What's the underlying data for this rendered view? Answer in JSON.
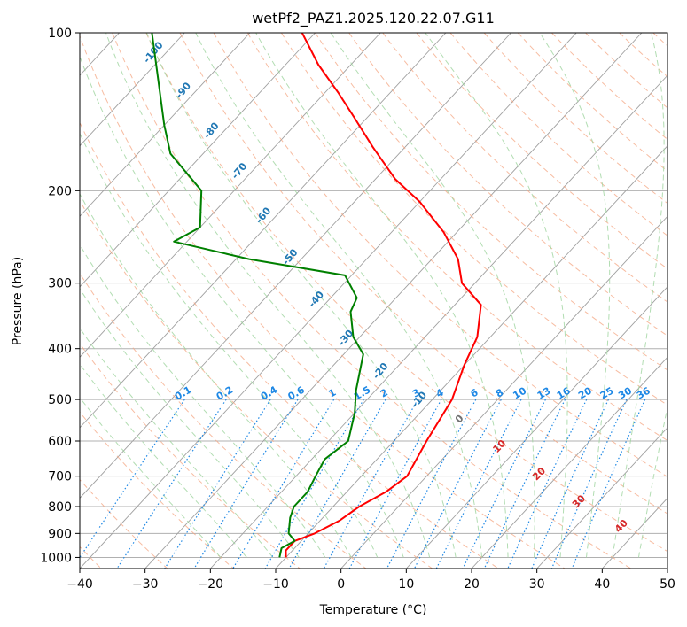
{
  "chart_data": {
    "type": "line",
    "subtype": "skew-T log-P diagram",
    "title": "wetPf2_PAZ1.2025.120.22.07.G11",
    "xlabel": "Temperature (°C)",
    "ylabel": "Pressure (hPa)",
    "xlim": [
      -40,
      50
    ],
    "ylim": [
      1050,
      100
    ],
    "y_scale": "log",
    "grid": true,
    "x_ticks": [
      -40,
      -30,
      -20,
      -10,
      0,
      10,
      20,
      30,
      40,
      50
    ],
    "y_ticks": [
      1000,
      900,
      800,
      700,
      600,
      500,
      400,
      300,
      200,
      100
    ],
    "x_tick_labels": [
      "−40",
      "−30",
      "−20",
      "−10",
      "0",
      "10",
      "20",
      "30",
      "40",
      "50"
    ],
    "y_tick_labels": [
      "1000",
      "900",
      "800",
      "700",
      "600",
      "500",
      "400",
      "300",
      "200",
      "100"
    ],
    "series": [
      {
        "color": "#ff0000",
        "x": [
          -10,
          -11,
          -11,
          -9,
          -7,
          -6,
          -4,
          -3,
          -5,
          -7,
          -10,
          -12,
          -16,
          -22,
          -26,
          -32,
          -40,
          -47,
          -55,
          -62,
          -68,
          -75,
          -82
        ],
        "y": [
          1000,
          970,
          930,
          900,
          850,
          800,
          750,
          700,
          600,
          500,
          430,
          380,
          330,
          300,
          270,
          240,
          210,
          190,
          165,
          145,
          130,
          115,
          100
        ]
      },
      {
        "color": "#008000",
        "x": [
          -11,
          -12,
          -11,
          -13,
          -15,
          -16,
          -16,
          -17,
          -18,
          -17,
          -20,
          -23,
          -27,
          -31,
          -35,
          -36,
          -41,
          -58,
          -72,
          -70,
          -75,
          -85,
          -90,
          -105
        ],
        "y": [
          1000,
          960,
          930,
          900,
          840,
          800,
          750,
          700,
          650,
          600,
          530,
          480,
          410,
          380,
          340,
          320,
          290,
          270,
          250,
          235,
          200,
          170,
          150,
          100
        ]
      }
    ],
    "colors": {
      "temperature": "#ff0000",
      "dewpoint": "#008000",
      "isotherms": "#a0a0a0",
      "dry_adiabats": "#f4a582",
      "moist_adiabats": "#9fd49f",
      "mixing_ratio": "#1e88e5",
      "dry_adiabat_labels": "#1f77b4",
      "moist_adiabat_labels": "#d62728"
    },
    "annotations": {
      "mixing_ratio_labels": [
        "0.1",
        "0.2",
        "0.4",
        "0.6",
        "1",
        "1.5",
        "2",
        "3",
        "4",
        "6",
        "8",
        "10",
        "13",
        "16",
        "20",
        "25",
        "30",
        "36"
      ],
      "dry_adiabat_labels": [
        "-100",
        "-90",
        "-80",
        "-70",
        "-60",
        "-50",
        "-40",
        "-30",
        "-20",
        "-10"
      ],
      "moist_adiabat_labels": [
        "0",
        "10",
        "20",
        "30",
        "40"
      ]
    }
  }
}
